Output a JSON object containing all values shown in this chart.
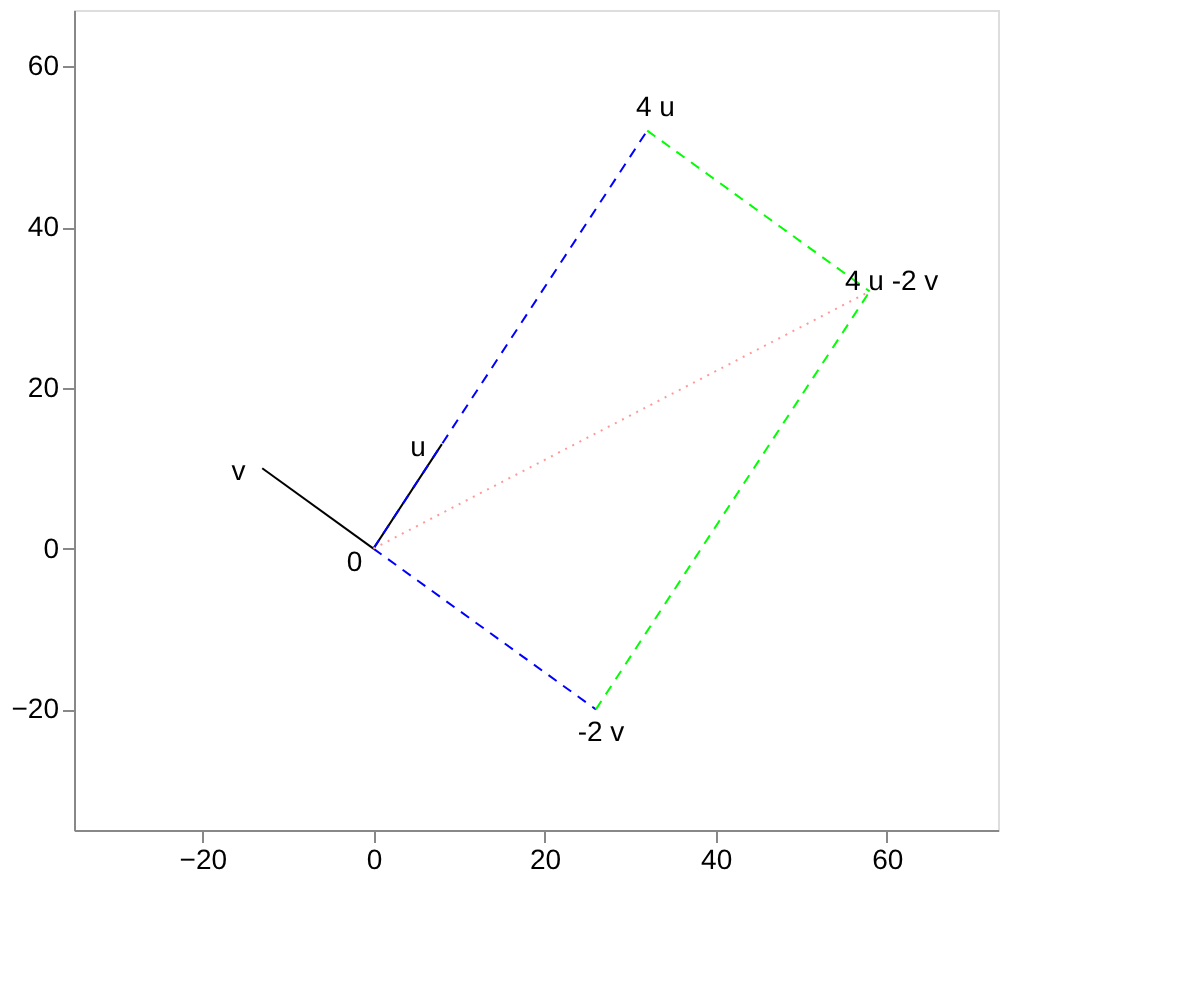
{
  "chart_data": {
    "type": "line",
    "xlim": [
      -35,
      73
    ],
    "ylim": [
      -35,
      67
    ],
    "xticks": [
      -20,
      0,
      20,
      40,
      60
    ],
    "yticks": [
      -20,
      0,
      20,
      40,
      60
    ],
    "grid": false,
    "series": [
      {
        "color": "#000000",
        "line_style": "solid",
        "x": [
          0,
          8
        ],
        "values": [
          0,
          13
        ]
      },
      {
        "color": "#000000",
        "line_style": "solid",
        "x": [
          0,
          -13
        ],
        "values": [
          0,
          10
        ]
      },
      {
        "color": "#0000ff",
        "line_style": "dashed",
        "x": [
          0,
          32
        ],
        "values": [
          0,
          52
        ]
      },
      {
        "color": "#0000ff",
        "line_style": "dashed",
        "x": [
          0,
          26
        ],
        "values": [
          0,
          -20
        ]
      },
      {
        "color": "#00ff00",
        "line_style": "dashed",
        "x": [
          32,
          58
        ],
        "values": [
          52,
          32
        ]
      },
      {
        "color": "#00ff00",
        "line_style": "dashed",
        "x": [
          26,
          58
        ],
        "values": [
          -20,
          32
        ]
      },
      {
        "color": "#ff9999",
        "line_style": "dotted",
        "x": [
          0,
          58
        ],
        "values": [
          0,
          32
        ]
      }
    ],
    "annotations": [
      {
        "text": "0",
        "x": 0,
        "y": 0
      },
      {
        "text": "u",
        "x": 8,
        "y": 13
      },
      {
        "text": "v",
        "x": -13,
        "y": 10
      },
      {
        "text": "4 u",
        "x": 32,
        "y": 52
      },
      {
        "text": "-2 v",
        "x": 26,
        "y": -20
      },
      {
        "text": "4 u -2 v",
        "x": 58,
        "y": 32
      }
    ]
  }
}
